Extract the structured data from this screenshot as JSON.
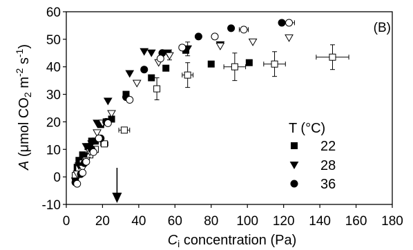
{
  "chart_data": {
    "type": "scatter",
    "panel_label": "(B)",
    "xlabel": {
      "italic": "C",
      "sub": "i",
      "rest": " concentration (Pa)"
    },
    "ylabel": {
      "prefix": "A",
      "open": " (μmol CO",
      "sub2": "2",
      "mid": " m",
      "sup1": "-2",
      "mid2": " s",
      "sup2": "-1",
      "close": ")"
    },
    "xlim": [
      0,
      180
    ],
    "ylim": [
      -10,
      60
    ],
    "xticks": [
      "0",
      "20",
      "40",
      "60",
      "80",
      "100",
      "120",
      "140",
      "160",
      "180"
    ],
    "yticks": [
      "-10",
      "0",
      "10",
      "20",
      "30",
      "40",
      "50",
      "60"
    ],
    "legend": {
      "title": "T (°C)",
      "entries": [
        {
          "label": "22",
          "marker": "square"
        },
        {
          "label": "28",
          "marker": "triangle-down"
        },
        {
          "label": "36",
          "marker": "circle"
        }
      ]
    },
    "arrow_x": 28,
    "series": [
      {
        "marker": "square",
        "fill": "filled",
        "points": [
          {
            "x": 5,
            "y": 0
          },
          {
            "x": 6,
            "y": 3.5
          },
          {
            "x": 7,
            "y": 6
          },
          {
            "x": 9,
            "y": 8
          },
          {
            "x": 12,
            "y": 11
          },
          {
            "x": 14,
            "y": 13
          },
          {
            "x": 16,
            "y": 13
          },
          {
            "x": 19,
            "y": 19
          },
          {
            "x": 22,
            "y": 20
          },
          {
            "x": 25,
            "y": 21
          },
          {
            "x": 33,
            "y": 30
          },
          {
            "x": 47,
            "y": 36
          },
          {
            "x": 55,
            "y": 39.5
          },
          {
            "x": 66,
            "y": 46
          },
          {
            "x": 80,
            "y": 41
          },
          {
            "x": 101,
            "y": 41.5
          }
        ]
      },
      {
        "marker": "square",
        "fill": "open",
        "points": [
          {
            "x": 5,
            "y": 0.5,
            "xerr": 1
          },
          {
            "x": 7,
            "y": 3
          },
          {
            "x": 9,
            "y": 5
          },
          {
            "x": 11,
            "y": 6.5
          },
          {
            "x": 13,
            "y": 8
          },
          {
            "x": 16,
            "y": 10
          },
          {
            "x": 21,
            "y": 12,
            "xerr": 2
          },
          {
            "x": 32,
            "y": 17,
            "xerr": 3
          },
          {
            "x": 50,
            "y": 32,
            "yerr": 4
          },
          {
            "x": 67,
            "y": 37,
            "xerr": 3,
            "yerr": 4.5
          },
          {
            "x": 93,
            "y": 40,
            "xerr": 6,
            "yerr": 5
          },
          {
            "x": 115,
            "y": 41,
            "xerr": 6,
            "yerr": 4.5
          },
          {
            "x": 147,
            "y": 43.5,
            "xerr": 9,
            "yerr": 4.5
          }
        ]
      },
      {
        "marker": "triangle-down",
        "fill": "filled",
        "points": [
          {
            "x": 5,
            "y": -1.5
          },
          {
            "x": 7,
            "y": 4
          },
          {
            "x": 10,
            "y": 7.5
          },
          {
            "x": 11,
            "y": 11
          },
          {
            "x": 14,
            "y": 12
          },
          {
            "x": 17,
            "y": 19.5
          },
          {
            "x": 23,
            "y": 27.5
          },
          {
            "x": 35,
            "y": 37.5
          },
          {
            "x": 43,
            "y": 45.5
          },
          {
            "x": 47,
            "y": 45
          },
          {
            "x": 56,
            "y": 45
          },
          {
            "x": 67,
            "y": 46.5,
            "yerr": 2.5
          },
          {
            "x": 85,
            "y": 48
          }
        ]
      },
      {
        "marker": "triangle-down",
        "fill": "open",
        "points": [
          {
            "x": 6,
            "y": 1
          },
          {
            "x": 9,
            "y": 3
          },
          {
            "x": 11,
            "y": 6
          },
          {
            "x": 13,
            "y": 9
          },
          {
            "x": 17,
            "y": 16
          },
          {
            "x": 20,
            "y": 19.5
          },
          {
            "x": 25,
            "y": 23
          },
          {
            "x": 39,
            "y": 34
          },
          {
            "x": 51,
            "y": 41.5
          },
          {
            "x": 57,
            "y": 44,
            "yerr": 1.5
          },
          {
            "x": 85,
            "y": 47.5
          },
          {
            "x": 103,
            "y": 49
          },
          {
            "x": 123,
            "y": 50.5
          }
        ]
      },
      {
        "marker": "circle",
        "fill": "filled",
        "points": [
          {
            "x": 5,
            "y": -2
          },
          {
            "x": 8,
            "y": 1
          },
          {
            "x": 10,
            "y": 5
          },
          {
            "x": 14,
            "y": 10
          },
          {
            "x": 19,
            "y": 14
          },
          {
            "x": 22,
            "y": 20
          },
          {
            "x": 33,
            "y": 29
          },
          {
            "x": 43,
            "y": 39
          },
          {
            "x": 53,
            "y": 45
          },
          {
            "x": 73,
            "y": 51
          },
          {
            "x": 91,
            "y": 54
          },
          {
            "x": 119,
            "y": 56
          }
        ]
      },
      {
        "marker": "circle",
        "fill": "open",
        "points": [
          {
            "x": 6,
            "y": -2.5
          },
          {
            "x": 9,
            "y": 1.5
          },
          {
            "x": 11,
            "y": 5.5
          },
          {
            "x": 15,
            "y": 9
          },
          {
            "x": 18,
            "y": 14
          },
          {
            "x": 23,
            "y": 19.5
          },
          {
            "x": 35,
            "y": 28
          },
          {
            "x": 52,
            "y": 43
          },
          {
            "x": 64,
            "y": 47
          },
          {
            "x": 82,
            "y": 51
          },
          {
            "x": 98,
            "y": 53.5,
            "xerr": 2.5
          },
          {
            "x": 123,
            "y": 56,
            "xerr": 3
          }
        ]
      }
    ]
  }
}
